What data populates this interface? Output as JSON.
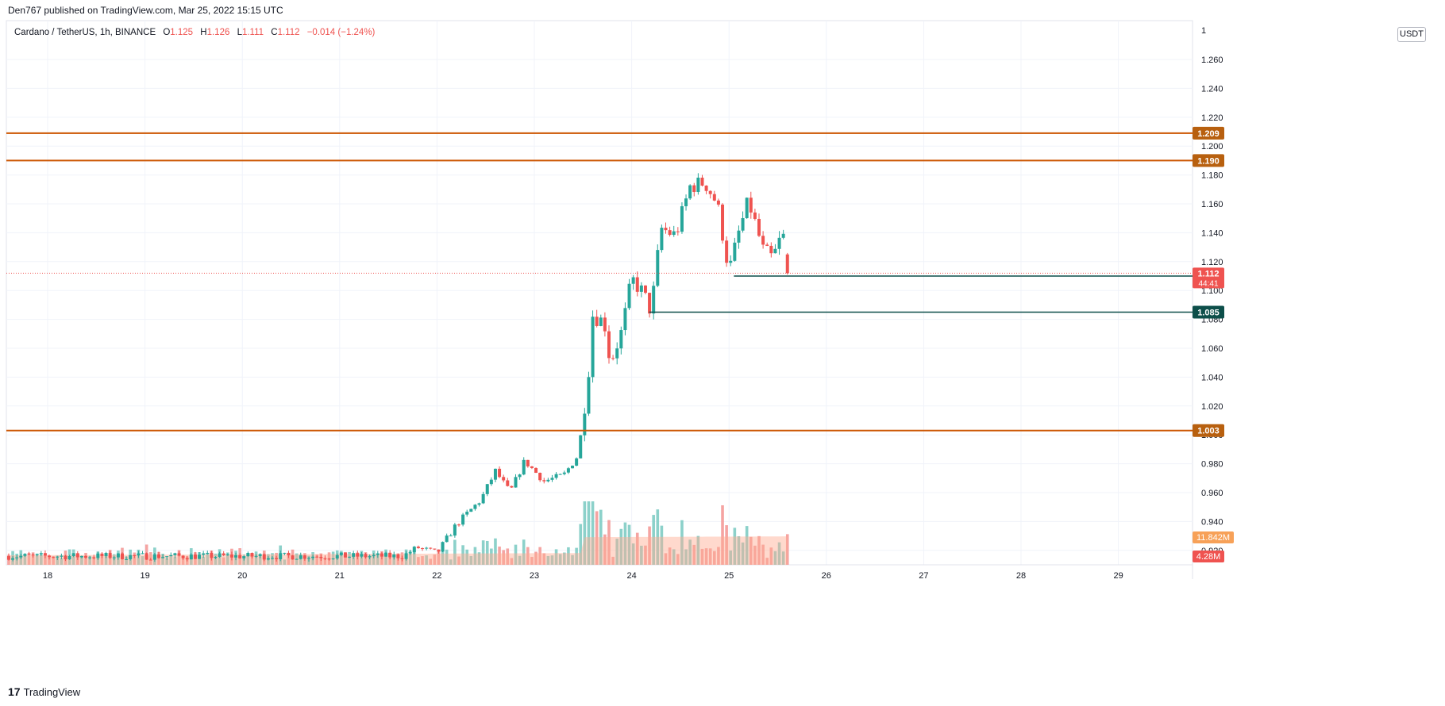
{
  "header": {
    "publisher": "Den767 published on TradingView.com, Mar 25, 2022 15:15 UTC"
  },
  "legend": {
    "symbol": "Cardano / TetherUS, 1h, BINANCE",
    "o_label": "O",
    "o_value": "1.125",
    "h_label": "H",
    "h_value": "1.126",
    "l_label": "L",
    "l_value": "1.111",
    "c_label": "C",
    "c_value": "1.112",
    "change": "−0.014 (−1.24%)"
  },
  "axis": {
    "unit": "USDT",
    "top_tick": "1"
  },
  "footer": {
    "brand": "TradingView"
  },
  "colors": {
    "up": "#26a69a",
    "down": "#ef5350",
    "orange_line": "#cc5500",
    "dark_green": "#0d4f4a",
    "grid": "#f0f3fa",
    "vol_ma": "#ffab91"
  },
  "chart_data": {
    "type": "candlestick",
    "symbol": "ADA/USDT",
    "interval": "1h",
    "ylim": [
      0.91,
      1.28
    ],
    "y_ticks": [
      "0.920",
      "0.940",
      "0.960",
      "0.980",
      "1.000",
      "1.020",
      "1.040",
      "1.060",
      "1.080",
      "1.100",
      "1.120",
      "1.140",
      "1.160",
      "1.180",
      "1.200",
      "1.220",
      "1.240",
      "1.260"
    ],
    "x_ticks": [
      "18",
      "19",
      "20",
      "21",
      "22",
      "23",
      "24",
      "25",
      "26",
      "27",
      "28",
      "29"
    ],
    "grid": true,
    "horizontal_lines": [
      {
        "price": 1.209,
        "label": "1.209",
        "color": "orange"
      },
      {
        "price": 1.19,
        "label": "1.190",
        "color": "orange"
      },
      {
        "price": 1.003,
        "label": "1.003",
        "color": "orange"
      }
    ],
    "ray_lines": [
      {
        "price": 1.11,
        "label": "1.110",
        "from_day": 25.05
      },
      {
        "price": 1.085,
        "label": "1.085",
        "from_day": 24.18
      }
    ],
    "last_price": {
      "price": 1.112,
      "label": "1.112",
      "countdown": "44:41"
    },
    "volume": {
      "ma_label": "11.842M",
      "last_label": "4.28M"
    },
    "anchors": [
      [
        17.6,
        0.916
      ],
      [
        21.65,
        0.916
      ],
      [
        21.8,
        0.922
      ],
      [
        22.0,
        0.918
      ],
      [
        22.2,
        0.938
      ],
      [
        22.45,
        0.955
      ],
      [
        22.6,
        0.975
      ],
      [
        22.75,
        0.96
      ],
      [
        22.9,
        0.982
      ],
      [
        23.1,
        0.968
      ],
      [
        23.3,
        0.972
      ],
      [
        23.45,
        0.986
      ],
      [
        23.55,
        1.038
      ],
      [
        23.6,
        1.083
      ],
      [
        23.72,
        1.078
      ],
      [
        23.78,
        1.05
      ],
      [
        23.9,
        1.072
      ],
      [
        24.0,
        1.108
      ],
      [
        24.12,
        1.098
      ],
      [
        24.2,
        1.085
      ],
      [
        24.3,
        1.143
      ],
      [
        24.45,
        1.138
      ],
      [
        24.6,
        1.172
      ],
      [
        24.75,
        1.175
      ],
      [
        24.88,
        1.16
      ],
      [
        25.0,
        1.113
      ],
      [
        25.1,
        1.14
      ],
      [
        25.2,
        1.162
      ],
      [
        25.35,
        1.128
      ],
      [
        25.45,
        1.122
      ],
      [
        25.55,
        1.14
      ],
      [
        25.63,
        1.112
      ]
    ]
  }
}
